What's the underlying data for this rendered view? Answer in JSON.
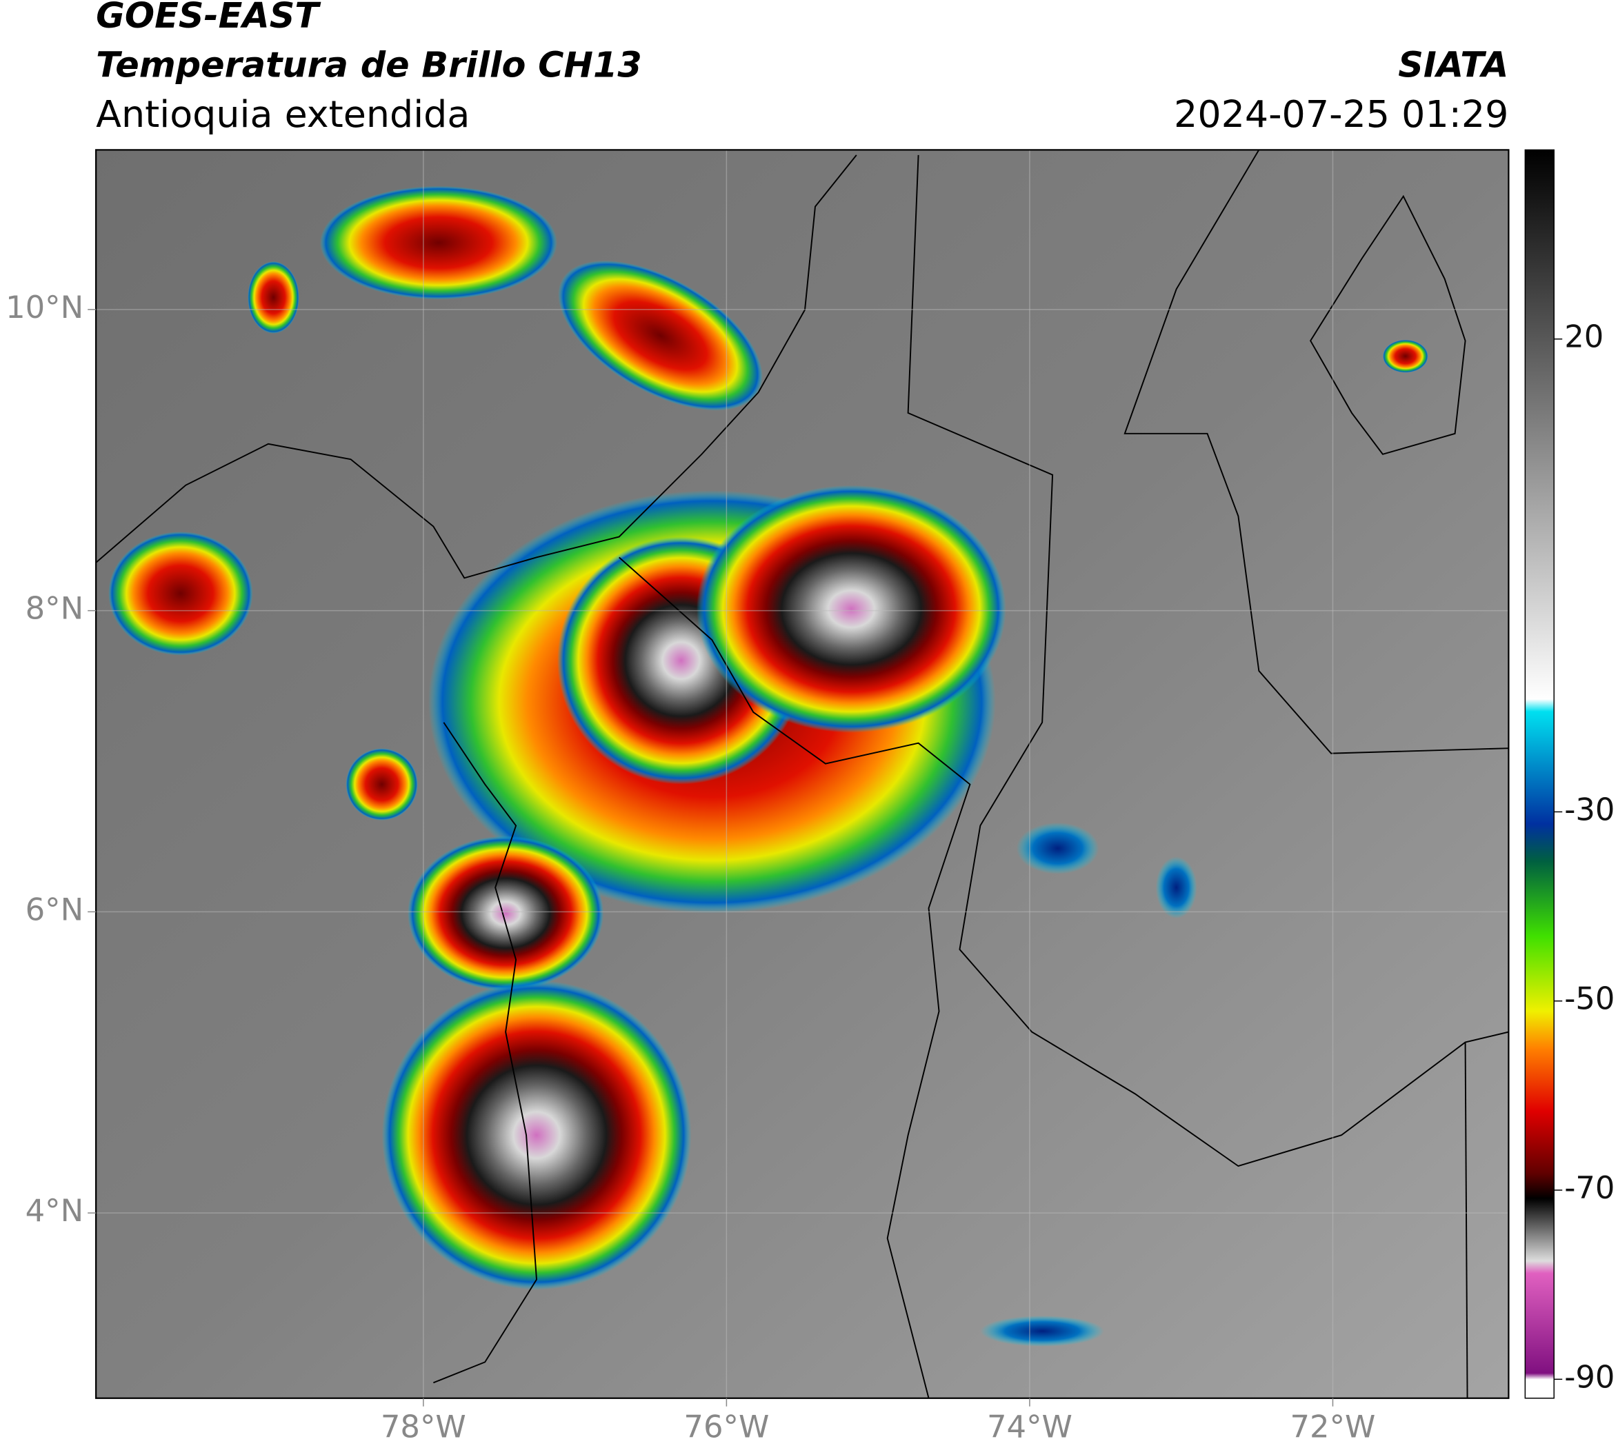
{
  "header": {
    "satellite": "GOES-EAST",
    "product": "Temperatura de Brillo CH13",
    "region": "Antioquia extendida",
    "source": "SIATA",
    "datetime": "2024-07-25 01:29"
  },
  "map": {
    "lon_range": [
      -80.16,
      -70.84
    ],
    "lat_range": [
      2.77,
      11.06
    ],
    "lon_ticks": [
      {
        "value": -78,
        "label": "78°W"
      },
      {
        "value": -76,
        "label": "76°W"
      },
      {
        "value": -74,
        "label": "74°W"
      },
      {
        "value": -72,
        "label": "72°W"
      }
    ],
    "lat_ticks": [
      {
        "value": 10,
        "label": "10°N"
      },
      {
        "value": 8,
        "label": "8°N"
      },
      {
        "value": 6,
        "label": "6°N"
      },
      {
        "value": 4,
        "label": "4°N"
      }
    ]
  },
  "colorbar": {
    "lim": [
      -92,
      40
    ],
    "ticks": [
      20,
      -30,
      -50,
      -70,
      -90
    ]
  }
}
